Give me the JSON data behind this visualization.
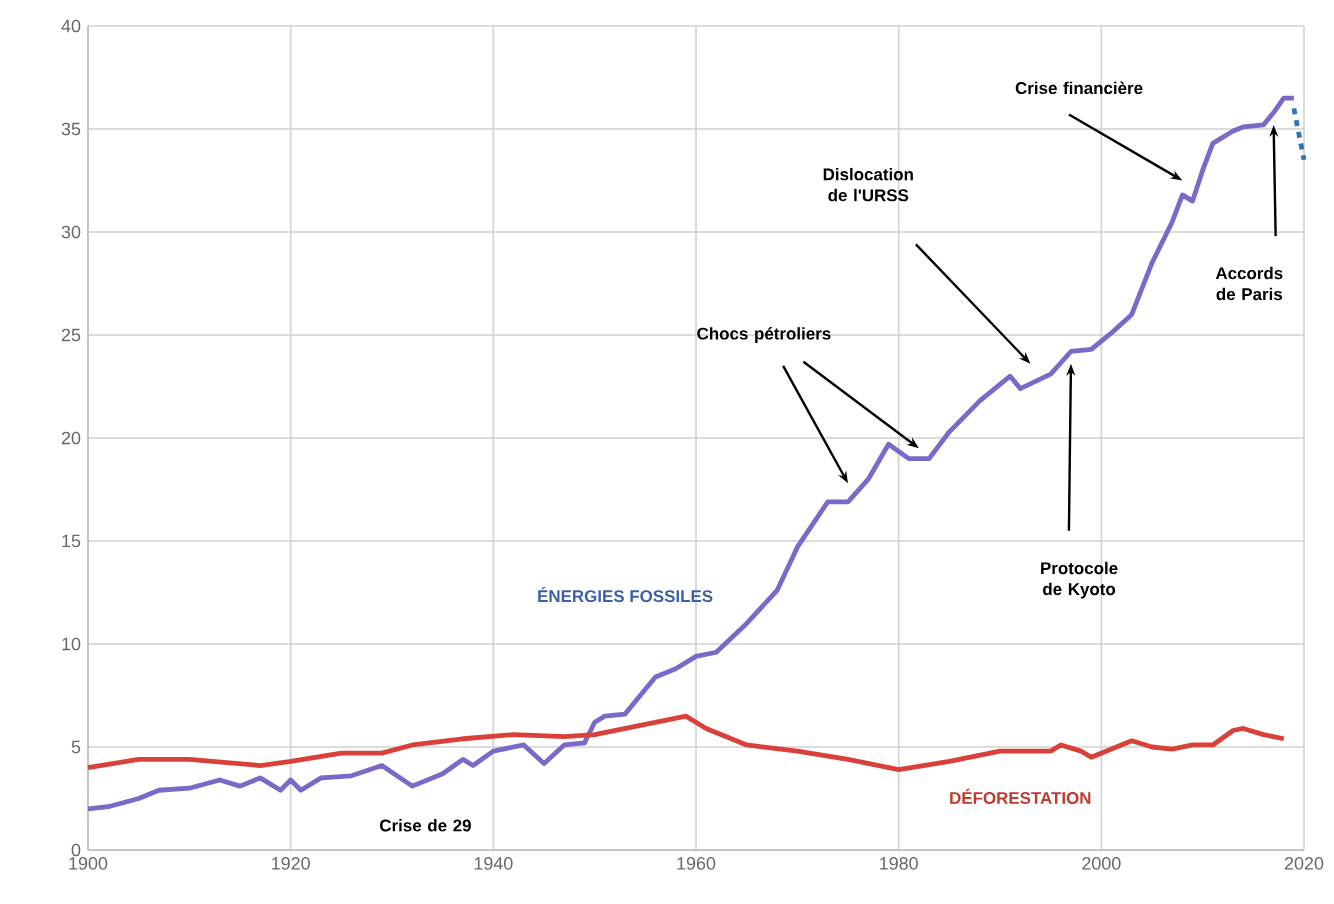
{
  "chart_data": {
    "type": "line",
    "xlim": [
      1900,
      2020
    ],
    "ylim": [
      0,
      40
    ],
    "xticks": [
      1900,
      1920,
      1940,
      1960,
      1980,
      2000,
      2020
    ],
    "yticks": [
      0,
      5,
      10,
      15,
      20,
      25,
      30,
      35,
      40
    ],
    "grid": true,
    "marker": "none",
    "line_style": "solid",
    "series": [
      {
        "name": "ÉNERGIES FOSSILES",
        "color": "#7b68c8",
        "x": [
          1900,
          1902,
          1905,
          1907,
          1910,
          1913,
          1915,
          1917,
          1919,
          1920,
          1921,
          1923,
          1926,
          1929,
          1932,
          1935,
          1937,
          1938,
          1940,
          1943,
          1945,
          1947,
          1949,
          1950,
          1951,
          1953,
          1955,
          1956,
          1958,
          1960,
          1962,
          1965,
          1968,
          1970,
          1973,
          1975,
          1977,
          1979,
          1981,
          1983,
          1985,
          1988,
          1991,
          1992,
          1995,
          1997,
          1999,
          2001,
          2003,
          2005,
          2007,
          2008,
          2009,
          2010,
          2011,
          2013,
          2014,
          2016,
          2017,
          2018,
          2019
        ],
        "values": [
          2.0,
          2.1,
          2.5,
          2.9,
          3.0,
          3.4,
          3.1,
          3.5,
          2.9,
          3.4,
          2.9,
          3.5,
          3.6,
          4.1,
          3.1,
          3.7,
          4.4,
          4.1,
          4.8,
          5.1,
          4.2,
          5.1,
          5.2,
          6.2,
          6.5,
          6.6,
          7.8,
          8.4,
          8.8,
          9.4,
          9.6,
          11.0,
          12.6,
          14.7,
          16.9,
          16.9,
          18.0,
          19.7,
          19.0,
          19.0,
          20.3,
          21.8,
          23.0,
          22.4,
          23.1,
          24.2,
          24.3,
          25.1,
          26.0,
          28.5,
          30.5,
          31.8,
          31.5,
          33.0,
          34.3,
          34.9,
          35.1,
          35.2,
          35.8,
          36.5,
          36.5
        ]
      },
      {
        "name": "DÉFORESTATION",
        "color": "#d9403a",
        "x": [
          1900,
          1905,
          1910,
          1917,
          1920,
          1925,
          1929,
          1932,
          1937,
          1942,
          1947,
          1950,
          1955,
          1959,
          1961,
          1965,
          1970,
          1975,
          1980,
          1985,
          1990,
          1995,
          1996,
          1998,
          1999,
          2001,
          2003,
          2005,
          2007,
          2009,
          2011,
          2013,
          2014,
          2016,
          2018
        ],
        "values": [
          4.0,
          4.4,
          4.4,
          4.1,
          4.3,
          4.7,
          4.7,
          5.1,
          5.4,
          5.6,
          5.5,
          5.6,
          6.1,
          6.5,
          5.9,
          5.1,
          4.8,
          4.4,
          3.9,
          4.3,
          4.8,
          4.8,
          5.1,
          4.8,
          4.5,
          4.9,
          5.3,
          5.0,
          4.9,
          5.1,
          5.1,
          5.8,
          5.9,
          5.6,
          5.4
        ]
      },
      {
        "color": "#2e75b6",
        "line_style": "dashed",
        "x": [
          2019,
          2020
        ],
        "values": [
          36.0,
          33.5
        ]
      }
    ],
    "annotations": [
      "Chocs pétroliers",
      "Dislocation de l'URSS",
      "Protocole de Kyoto",
      "Crise financière",
      "Accords de Paris",
      "Crise de 29"
    ]
  }
}
